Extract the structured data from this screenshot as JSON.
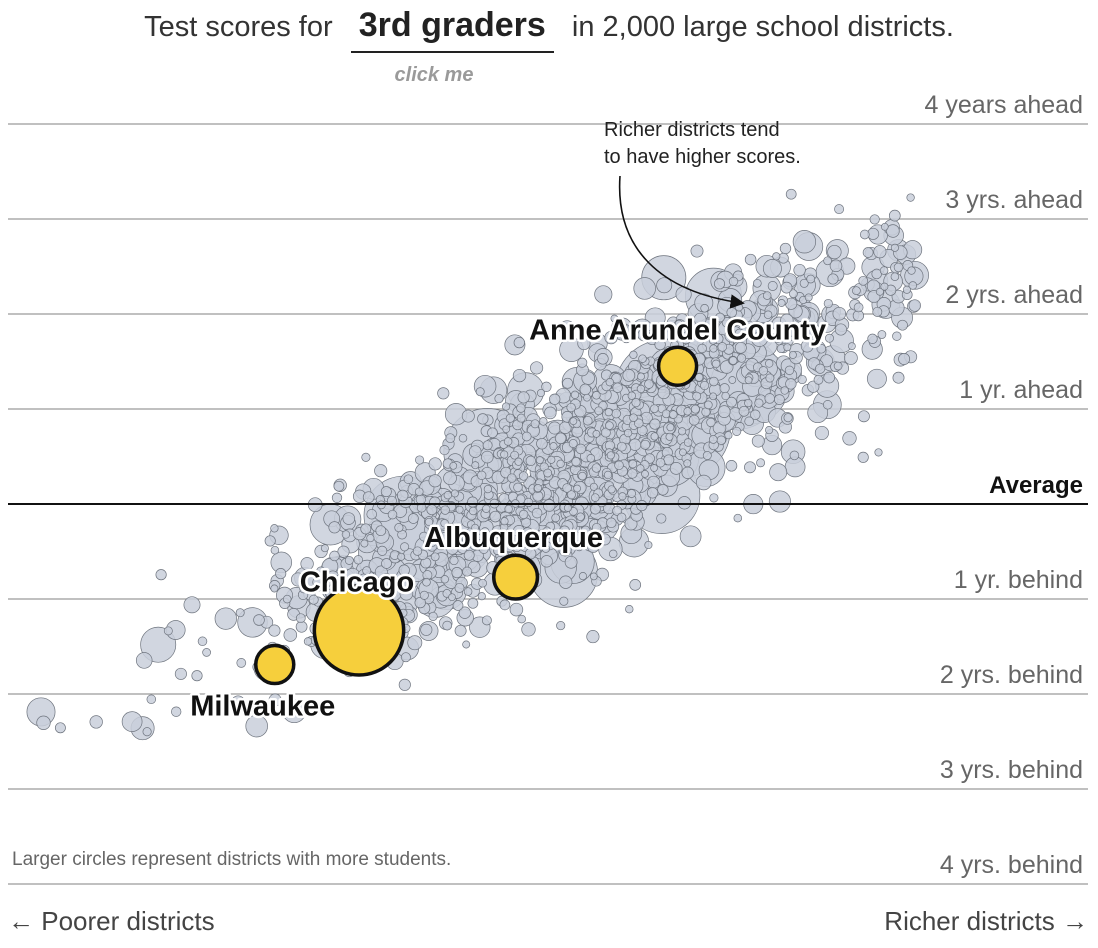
{
  "header": {
    "title_prefix": "Test scores for",
    "grade_selector": "3rd graders",
    "title_suffix": "in 2,000 large school districts.",
    "click_hint": "click me"
  },
  "annotation": "Richer districts tend\nto have higher scores.",
  "footnote": "Larger circles represent districts with more students.",
  "x_axis": {
    "left_label": "← Poorer districts",
    "right_label": "Richer districts →"
  },
  "colors": {
    "background_circle": "#c9cfda",
    "circle_stroke": "#6e747e",
    "highlight": "#f6cf3c",
    "gridline": "#9a9a9a",
    "average_line": "#111111"
  },
  "chart_data": {
    "type": "scatter",
    "xlabel": "",
    "ylabel": "",
    "xlim": [
      0,
      1
    ],
    "ylim": [
      -4,
      4
    ],
    "y_ticks": [
      {
        "value": 4,
        "label": "4 years ahead"
      },
      {
        "value": 3,
        "label": "3 yrs. ahead"
      },
      {
        "value": 2,
        "label": "2 yrs. ahead"
      },
      {
        "value": 1,
        "label": "1 yr. ahead"
      },
      {
        "value": 0,
        "label": "Average"
      },
      {
        "value": -1,
        "label": "1 yr. behind"
      },
      {
        "value": -2,
        "label": "2 yrs. behind"
      },
      {
        "value": -3,
        "label": "3 yrs. behind"
      },
      {
        "value": -4,
        "label": "4 yrs. behind"
      }
    ],
    "highlighted": [
      {
        "name": "Anne Arundel County",
        "x": 0.62,
        "y": 1.45,
        "size": 1.0
      },
      {
        "name": "Albuquerque",
        "x": 0.47,
        "y": -0.77,
        "size": 1.15
      },
      {
        "name": "Chicago",
        "x": 0.325,
        "y": -1.33,
        "size": 2.35
      },
      {
        "name": "Milwaukee",
        "x": 0.247,
        "y": -1.69,
        "size": 1.0
      }
    ],
    "background_points": {
      "count": 2000,
      "description_trend": "positive correlation between district wealth and scores"
    }
  }
}
